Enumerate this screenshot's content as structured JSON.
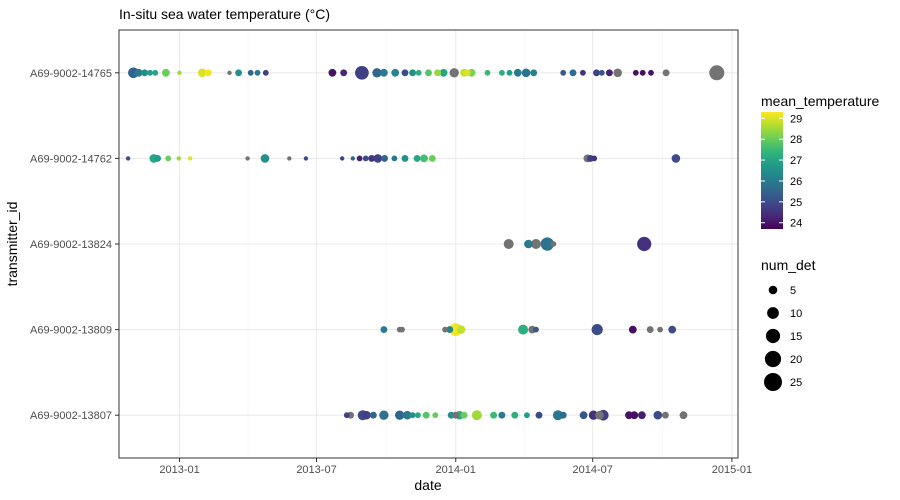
{
  "chart_data": {
    "type": "scatter",
    "title": "In-situ sea water temperature (°C)",
    "xlabel": "date",
    "ylabel": "transmitter_id",
    "x_ticks": [
      "2013-01",
      "2013-07",
      "2014-01",
      "2014-07",
      "2015-01"
    ],
    "categories": [
      "A69-9002-14765",
      "A69-9002-14762",
      "A69-9002-13824",
      "A69-9002-13809",
      "A69-9002-13807"
    ],
    "xlim": [
      "2012-10-13",
      "2015-01-09"
    ],
    "grid": true,
    "color_legend": {
      "title": "mean_temperature",
      "range": [
        23.7,
        29.3
      ],
      "ticks": [
        24,
        25,
        26,
        27,
        28,
        29
      ],
      "palette": [
        "#440154",
        "#482878",
        "#3e4989",
        "#31688e",
        "#26828e",
        "#1f9e89",
        "#35b779",
        "#6ece58",
        "#b5de2b",
        "#fde725"
      ],
      "na_color": "#737373"
    },
    "size_legend": {
      "title": "num_det",
      "values": [
        5,
        10,
        15,
        20,
        25
      ]
    },
    "points": [
      {
        "id": "A69-9002-14765",
        "date": "2012-11-01",
        "temp": 25.5,
        "n": 8
      },
      {
        "id": "A69-9002-14765",
        "date": "2012-11-08",
        "temp": 26.0,
        "n": 4
      },
      {
        "id": "A69-9002-14765",
        "date": "2012-11-16",
        "temp": 26.5,
        "n": 3
      },
      {
        "id": "A69-9002-14765",
        "date": "2012-11-23",
        "temp": 26.8,
        "n": 2
      },
      {
        "id": "A69-9002-14765",
        "date": "2012-11-30",
        "temp": 27.0,
        "n": 2
      },
      {
        "id": "A69-9002-14765",
        "date": "2012-12-14",
        "temp": 28.0,
        "n": 4
      },
      {
        "id": "A69-9002-14765",
        "date": "2013-01-01",
        "temp": 28.5,
        "n": 1
      },
      {
        "id": "A69-9002-14765",
        "date": "2013-01-31",
        "temp": 29.0,
        "n": 5
      },
      {
        "id": "A69-9002-14765",
        "date": "2013-02-08",
        "temp": 29.2,
        "n": 3
      },
      {
        "id": "A69-9002-14765",
        "date": "2013-03-08",
        "temp": null,
        "n": 1
      },
      {
        "id": "A69-9002-14765",
        "date": "2013-03-20",
        "temp": 26.5,
        "n": 3
      },
      {
        "id": "A69-9002-14765",
        "date": "2013-04-05",
        "temp": 25.5,
        "n": 2
      },
      {
        "id": "A69-9002-14765",
        "date": "2013-04-14",
        "temp": 26.0,
        "n": 2
      },
      {
        "id": "A69-9002-14765",
        "date": "2013-04-25",
        "temp": 24.8,
        "n": 2
      },
      {
        "id": "A69-9002-14765",
        "date": "2013-07-22",
        "temp": 24.0,
        "n": 4
      },
      {
        "id": "A69-9002-14765",
        "date": "2013-08-06",
        "temp": 24.3,
        "n": 3
      },
      {
        "id": "A69-9002-14765",
        "date": "2013-08-30",
        "temp": 24.8,
        "n": 14
      },
      {
        "id": "A69-9002-14765",
        "date": "2013-09-19",
        "temp": 25.5,
        "n": 6
      },
      {
        "id": "A69-9002-14765",
        "date": "2013-09-28",
        "temp": 26.0,
        "n": 4
      },
      {
        "id": "A69-9002-14765",
        "date": "2013-10-13",
        "temp": 26.3,
        "n": 4
      },
      {
        "id": "A69-9002-14765",
        "date": "2013-10-26",
        "temp": 25.0,
        "n": 3
      },
      {
        "id": "A69-9002-14765",
        "date": "2013-11-05",
        "temp": 26.5,
        "n": 3
      },
      {
        "id": "A69-9002-14765",
        "date": "2013-11-13",
        "temp": 27.2,
        "n": 2
      },
      {
        "id": "A69-9002-14765",
        "date": "2013-11-26",
        "temp": 27.8,
        "n": 3
      },
      {
        "id": "A69-9002-14765",
        "date": "2013-12-08",
        "temp": 28.4,
        "n": 3
      },
      {
        "id": "A69-9002-14765",
        "date": "2013-12-16",
        "temp": 27.0,
        "n": 4
      },
      {
        "id": "A69-9002-14765",
        "date": "2013-12-30",
        "temp": null,
        "n": 6
      },
      {
        "id": "A69-9002-14765",
        "date": "2014-01-12",
        "temp": 28.8,
        "n": 4
      },
      {
        "id": "A69-9002-14765",
        "date": "2014-01-16",
        "temp": 29.0,
        "n": 3
      },
      {
        "id": "A69-9002-14765",
        "date": "2014-01-22",
        "temp": 28.2,
        "n": 4
      },
      {
        "id": "A69-9002-14765",
        "date": "2014-02-12",
        "temp": 27.5,
        "n": 2
      },
      {
        "id": "A69-9002-14765",
        "date": "2014-03-03",
        "temp": 27.2,
        "n": 2
      },
      {
        "id": "A69-9002-14765",
        "date": "2014-03-13",
        "temp": 26.8,
        "n": 2
      },
      {
        "id": "A69-9002-14765",
        "date": "2014-03-24",
        "temp": 26.0,
        "n": 4
      },
      {
        "id": "A69-9002-14765",
        "date": "2014-04-04",
        "temp": 25.8,
        "n": 5
      },
      {
        "id": "A69-9002-14765",
        "date": "2014-04-14",
        "temp": 26.2,
        "n": 3
      },
      {
        "id": "A69-9002-14765",
        "date": "2014-05-23",
        "temp": 25.3,
        "n": 2
      },
      {
        "id": "A69-9002-14765",
        "date": "2014-06-05",
        "temp": 25.7,
        "n": 3
      },
      {
        "id": "A69-9002-14765",
        "date": "2014-06-18",
        "temp": 24.5,
        "n": 2
      },
      {
        "id": "A69-9002-14765",
        "date": "2014-07-06",
        "temp": 24.8,
        "n": 3
      },
      {
        "id": "A69-9002-14765",
        "date": "2014-07-13",
        "temp": 25.2,
        "n": 2
      },
      {
        "id": "A69-9002-14765",
        "date": "2014-07-23",
        "temp": 24.2,
        "n": 3
      },
      {
        "id": "A69-9002-14765",
        "date": "2014-08-03",
        "temp": null,
        "n": 5
      },
      {
        "id": "A69-9002-14765",
        "date": "2014-08-27",
        "temp": 24.0,
        "n": 2
      },
      {
        "id": "A69-9002-14765",
        "date": "2014-09-05",
        "temp": 23.9,
        "n": 2
      },
      {
        "id": "A69-9002-14765",
        "date": "2014-09-16",
        "temp": 24.0,
        "n": 2
      },
      {
        "id": "A69-9002-14765",
        "date": "2014-10-06",
        "temp": null,
        "n": 3
      },
      {
        "id": "A69-9002-14765",
        "date": "2014-12-12",
        "temp": null,
        "n": 17
      },
      {
        "id": "A69-9002-14762",
        "date": "2012-10-25",
        "temp": 25.0,
        "n": 1
      },
      {
        "id": "A69-9002-14762",
        "date": "2012-11-28",
        "temp": 27.0,
        "n": 5
      },
      {
        "id": "A69-9002-14762",
        "date": "2012-12-03",
        "temp": 26.8,
        "n": 3
      },
      {
        "id": "A69-9002-14762",
        "date": "2012-12-17",
        "temp": 28.0,
        "n": 2
      },
      {
        "id": "A69-9002-14762",
        "date": "2012-12-31",
        "temp": 28.5,
        "n": 1
      },
      {
        "id": "A69-9002-14762",
        "date": "2013-01-15",
        "temp": 29.0,
        "n": 1
      },
      {
        "id": "A69-9002-14762",
        "date": "2013-04-01",
        "temp": null,
        "n": 1
      },
      {
        "id": "A69-9002-14762",
        "date": "2013-04-24",
        "temp": 26.5,
        "n": 5
      },
      {
        "id": "A69-9002-14762",
        "date": "2013-05-26",
        "temp": null,
        "n": 1
      },
      {
        "id": "A69-9002-14762",
        "date": "2013-06-17",
        "temp": 25.0,
        "n": 1
      },
      {
        "id": "A69-9002-14762",
        "date": "2013-08-04",
        "temp": 24.8,
        "n": 1
      },
      {
        "id": "A69-9002-14762",
        "date": "2013-08-18",
        "temp": 25.5,
        "n": 1
      },
      {
        "id": "A69-9002-14762",
        "date": "2013-08-27",
        "temp": 24.2,
        "n": 2
      },
      {
        "id": "A69-9002-14762",
        "date": "2013-09-04",
        "temp": 25.0,
        "n": 2
      },
      {
        "id": "A69-9002-14762",
        "date": "2013-09-12",
        "temp": 24.6,
        "n": 3
      },
      {
        "id": "A69-9002-14762",
        "date": "2013-09-20",
        "temp": 24.8,
        "n": 5
      },
      {
        "id": "A69-9002-14762",
        "date": "2013-09-29",
        "temp": 25.5,
        "n": 3
      },
      {
        "id": "A69-9002-14762",
        "date": "2013-10-12",
        "temp": 26.0,
        "n": 2
      },
      {
        "id": "A69-9002-14762",
        "date": "2013-10-26",
        "temp": 26.5,
        "n": 3
      },
      {
        "id": "A69-9002-14762",
        "date": "2013-11-11",
        "temp": 27.0,
        "n": 3
      },
      {
        "id": "A69-9002-14762",
        "date": "2013-11-20",
        "temp": 27.6,
        "n": 4
      },
      {
        "id": "A69-9002-14762",
        "date": "2013-12-01",
        "temp": 28.0,
        "n": 3
      },
      {
        "id": "A69-9002-14762",
        "date": "2014-06-24",
        "temp": null,
        "n": 4
      },
      {
        "id": "A69-9002-14762",
        "date": "2014-06-28",
        "temp": 24.8,
        "n": 3
      },
      {
        "id": "A69-9002-14762",
        "date": "2014-07-03",
        "temp": 24.5,
        "n": 2
      },
      {
        "id": "A69-9002-14762",
        "date": "2014-10-19",
        "temp": 25.0,
        "n": 5
      },
      {
        "id": "A69-9002-13824",
        "date": "2014-03-12",
        "temp": null,
        "n": 7
      },
      {
        "id": "A69-9002-13824",
        "date": "2014-04-07",
        "temp": 26.0,
        "n": 5
      },
      {
        "id": "A69-9002-13824",
        "date": "2014-04-17",
        "temp": null,
        "n": 7
      },
      {
        "id": "A69-9002-13824",
        "date": "2014-05-02",
        "temp": 25.8,
        "n": 13
      },
      {
        "id": "A69-9002-13824",
        "date": "2014-05-10",
        "temp": null,
        "n": 2
      },
      {
        "id": "A69-9002-13824",
        "date": "2014-09-07",
        "temp": 24.5,
        "n": 15
      },
      {
        "id": "A69-9002-13809",
        "date": "2013-09-28",
        "temp": 26.0,
        "n": 3
      },
      {
        "id": "A69-9002-13809",
        "date": "2013-10-19",
        "temp": null,
        "n": 2
      },
      {
        "id": "A69-9002-13809",
        "date": "2013-10-22",
        "temp": null,
        "n": 2
      },
      {
        "id": "A69-9002-13809",
        "date": "2013-12-18",
        "temp": null,
        "n": 2
      },
      {
        "id": "A69-9002-13809",
        "date": "2013-12-24",
        "temp": 26.2,
        "n": 3
      },
      {
        "id": "A69-9002-13809",
        "date": "2014-01-01",
        "temp": 29.2,
        "n": 12
      },
      {
        "id": "A69-9002-13809",
        "date": "2014-01-08",
        "temp": 28.8,
        "n": 5
      },
      {
        "id": "A69-9002-13809",
        "date": "2014-03-31",
        "temp": 27.2,
        "n": 7
      },
      {
        "id": "A69-9002-13809",
        "date": "2014-04-12",
        "temp": null,
        "n": 4
      },
      {
        "id": "A69-9002-13809",
        "date": "2014-04-17",
        "temp": 25.2,
        "n": 2
      },
      {
        "id": "A69-9002-13809",
        "date": "2014-07-07",
        "temp": 25.0,
        "n": 9
      },
      {
        "id": "A69-9002-13809",
        "date": "2014-08-23",
        "temp": 23.9,
        "n": 4
      },
      {
        "id": "A69-9002-13809",
        "date": "2014-09-15",
        "temp": null,
        "n": 3
      },
      {
        "id": "A69-9002-13809",
        "date": "2014-09-28",
        "temp": null,
        "n": 2
      },
      {
        "id": "A69-9002-13809",
        "date": "2014-10-14",
        "temp": 25.0,
        "n": 4
      },
      {
        "id": "A69-9002-13807",
        "date": "2013-08-10",
        "temp": 24.8,
        "n": 2
      },
      {
        "id": "A69-9002-13807",
        "date": "2013-08-15",
        "temp": null,
        "n": 3
      },
      {
        "id": "A69-9002-13807",
        "date": "2013-08-31",
        "temp": 25.0,
        "n": 7
      },
      {
        "id": "A69-9002-13807",
        "date": "2013-09-05",
        "temp": 24.8,
        "n": 5
      },
      {
        "id": "A69-9002-13807",
        "date": "2013-09-14",
        "temp": 25.5,
        "n": 3
      },
      {
        "id": "A69-9002-13807",
        "date": "2013-09-28",
        "temp": 25.8,
        "n": 6
      },
      {
        "id": "A69-9002-13807",
        "date": "2013-10-19",
        "temp": 25.5,
        "n": 6
      },
      {
        "id": "A69-9002-13807",
        "date": "2013-10-29",
        "temp": 26.0,
        "n": 5
      },
      {
        "id": "A69-9002-13807",
        "date": "2013-11-05",
        "temp": 26.5,
        "n": 2
      },
      {
        "id": "A69-9002-13807",
        "date": "2013-11-12",
        "temp": 27.0,
        "n": 2
      },
      {
        "id": "A69-9002-13807",
        "date": "2013-11-23",
        "temp": 27.8,
        "n": 3
      },
      {
        "id": "A69-9002-13807",
        "date": "2013-12-05",
        "temp": 28.0,
        "n": 2
      },
      {
        "id": "A69-9002-13807",
        "date": "2013-12-26",
        "temp": 26.5,
        "n": 3
      },
      {
        "id": "A69-9002-13807",
        "date": "2014-01-01",
        "temp": null,
        "n": 3
      },
      {
        "id": "A69-9002-13807",
        "date": "2014-01-06",
        "temp": 27.2,
        "n": 5
      },
      {
        "id": "A69-9002-13807",
        "date": "2014-01-12",
        "temp": 28.0,
        "n": 3
      },
      {
        "id": "A69-9002-13807",
        "date": "2014-01-29",
        "temp": 28.5,
        "n": 7
      },
      {
        "id": "A69-9002-13807",
        "date": "2014-02-20",
        "temp": 27.5,
        "n": 3
      },
      {
        "id": "A69-9002-13807",
        "date": "2014-03-03",
        "temp": 26.0,
        "n": 3
      },
      {
        "id": "A69-9002-13807",
        "date": "2014-03-20",
        "temp": 27.2,
        "n": 3
      },
      {
        "id": "A69-9002-13807",
        "date": "2014-04-05",
        "temp": 26.8,
        "n": 2
      },
      {
        "id": "A69-9002-13807",
        "date": "2014-04-21",
        "temp": 25.0,
        "n": 3
      },
      {
        "id": "A69-9002-13807",
        "date": "2014-05-16",
        "temp": 26.0,
        "n": 7
      },
      {
        "id": "A69-9002-13807",
        "date": "2014-05-23",
        "temp": 25.6,
        "n": 3
      },
      {
        "id": "A69-9002-13807",
        "date": "2014-06-19",
        "temp": 25.2,
        "n": 4
      },
      {
        "id": "A69-9002-13807",
        "date": "2014-07-02",
        "temp": 24.5,
        "n": 6
      },
      {
        "id": "A69-9002-13807",
        "date": "2014-07-10",
        "temp": null,
        "n": 5
      },
      {
        "id": "A69-9002-13807",
        "date": "2014-07-15",
        "temp": 24.8,
        "n": 8
      },
      {
        "id": "A69-9002-13807",
        "date": "2014-08-18",
        "temp": 24.0,
        "n": 4
      },
      {
        "id": "A69-9002-13807",
        "date": "2014-08-25",
        "temp": 23.9,
        "n": 4
      },
      {
        "id": "A69-9002-13807",
        "date": "2014-09-04",
        "temp": 24.2,
        "n": 4
      },
      {
        "id": "A69-9002-13807",
        "date": "2014-09-25",
        "temp": 25.0,
        "n": 5
      },
      {
        "id": "A69-9002-13807",
        "date": "2014-10-05",
        "temp": null,
        "n": 3
      },
      {
        "id": "A69-9002-13807",
        "date": "2014-10-29",
        "temp": null,
        "n": 4
      }
    ]
  }
}
